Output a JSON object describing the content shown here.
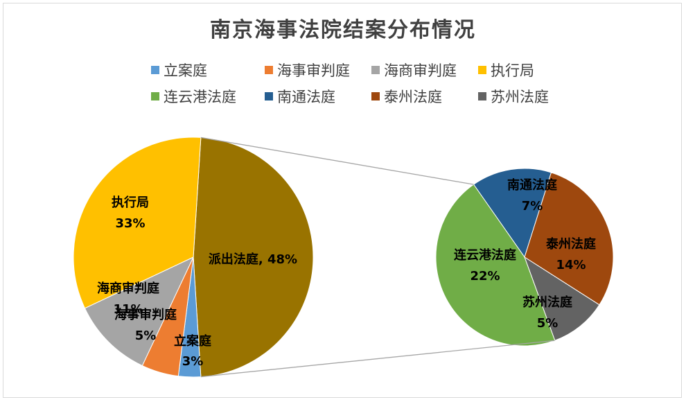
{
  "chart_data": {
    "type": "pie",
    "title": "南京海事法院结案分布情况",
    "legend": {
      "placement": "top",
      "entries": [
        {
          "name": "立案庭",
          "color": "#5B9BD5"
        },
        {
          "name": "海事审判庭",
          "color": "#ED7D31"
        },
        {
          "name": "海商审判庭",
          "color": "#A5A5A5"
        },
        {
          "name": "执行局",
          "color": "#FFC000"
        },
        {
          "name": "连云港法庭",
          "color": "#70AD47"
        },
        {
          "name": "南通法庭",
          "color": "#255E91"
        },
        {
          "name": "泰州法庭",
          "color": "#9E480E"
        },
        {
          "name": "苏州法庭",
          "color": "#636363"
        }
      ]
    },
    "main_pie": {
      "slices": [
        {
          "name": "派出法庭",
          "value": 48,
          "color": "#997300",
          "label_text": "派出法庭, 48%"
        },
        {
          "name": "立案庭",
          "value": 3,
          "color": "#5B9BD5",
          "label_text": "3%"
        },
        {
          "name": "海事审判庭",
          "value": 5,
          "color": "#ED7D31",
          "label_text": "5%"
        },
        {
          "name": "海商审判庭",
          "value": 11,
          "color": "#A5A5A5",
          "label_text": "11%"
        },
        {
          "name": "执行局",
          "value": 33,
          "color": "#FFC000",
          "label_text": "33%"
        }
      ]
    },
    "sub_pie": {
      "slices": [
        {
          "name": "南通法庭",
          "value": 7,
          "color": "#255E91",
          "label_text": "7%"
        },
        {
          "name": "泰州法庭",
          "value": 14,
          "color": "#9E480E",
          "label_text": "14%"
        },
        {
          "name": "苏州法庭",
          "value": 5,
          "color": "#636363",
          "label_text": "5%"
        },
        {
          "name": "连云港法庭",
          "value": 22,
          "color": "#70AD47",
          "label_text": "22%"
        }
      ]
    }
  }
}
